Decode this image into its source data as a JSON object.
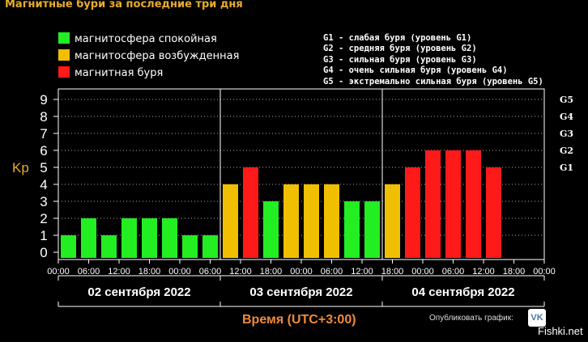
{
  "title": "Магнитные бури за последние три дня",
  "legend": [
    {
      "label": "магнитосфера спокойная",
      "color": "#22ee22"
    },
    {
      "label": "магнитосфера возбужденная",
      "color": "#f0c000"
    },
    {
      "label": "магнитная буря",
      "color": "#ff1a1a"
    }
  ],
  "g_legend": [
    "G1 - слабая буря (уровень G1)",
    "G2 - средняя буря (уровень G2)",
    "G3 - сильная буря (уровень G3)",
    "G4 - очень сильная буря (уровень G4)",
    "G5 - экстремально сильная буря (уровень G5)"
  ],
  "ylabel": "Kp",
  "xlabel": "Время (UTC+3:00)",
  "publish_text": "Опубликовать график:",
  "vk_label": "VK",
  "site_label": "Fishki.net",
  "chart_data": {
    "type": "bar",
    "ylim": [
      0,
      9
    ],
    "yticks": [
      "0",
      "1",
      "2",
      "3",
      "4",
      "5",
      "6",
      "7",
      "8",
      "9"
    ],
    "g_ticks": [
      {
        "label": "G1",
        "value": 5
      },
      {
        "label": "G2",
        "value": 6
      },
      {
        "label": "G3",
        "value": 7
      },
      {
        "label": "G4",
        "value": 8
      },
      {
        "label": "G5",
        "value": 9
      }
    ],
    "x_tick_labels": [
      "00:00",
      "06:00",
      "12:00",
      "18:00",
      "00:00",
      "06:00",
      "12:00",
      "18:00",
      "00:00",
      "06:00",
      "12:00",
      "18:00",
      "00:00",
      "06:00",
      "12:00",
      "18:00",
      "00:00"
    ],
    "days": [
      "02 сентября 2022",
      "03 сентября 2022",
      "04 сентября 2022"
    ],
    "grid": true,
    "colors": {
      "quiet": "#22ee22",
      "active": "#f0c000",
      "storm": "#ff1a1a"
    },
    "values": [
      1,
      2,
      1,
      2,
      2,
      2,
      1,
      1,
      4,
      5,
      3,
      4,
      4,
      4,
      3,
      3,
      4,
      5,
      6,
      6,
      6,
      5
    ]
  }
}
